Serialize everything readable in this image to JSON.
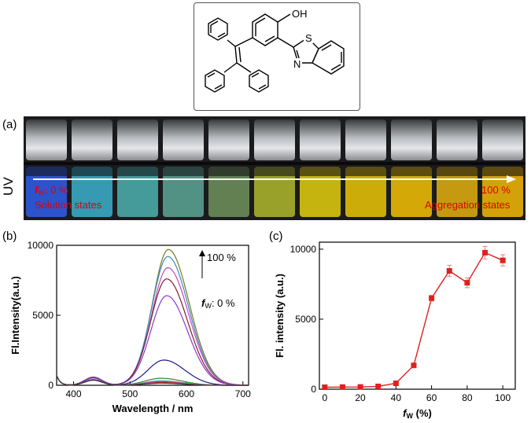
{
  "structure": {
    "oh_label": "OH",
    "s_label": "S",
    "n_label": "N"
  },
  "panel_a": {
    "label": "(a)",
    "uv_label": "UV",
    "left_fw_value": ": 0 %",
    "left_fw_symbol": "f",
    "left_fw_sub": "W",
    "left_state": "Solution states",
    "right_fw_value": "100 %",
    "right_state": "Aggregation states",
    "vial_colors_uv": [
      "#2e5be0",
      "#3aa8c4",
      "#4aa8a8",
      "#58a090",
      "#6a8c58",
      "#a8b02e",
      "#d8c40e",
      "#e0bc08",
      "#e8b806",
      "#d8a810",
      "#e8b008"
    ]
  },
  "panel_b": {
    "label": "(b)",
    "top_annotation": "100 %",
    "bottom_annotation": ": 0 %"
  },
  "panel_c": {
    "label": "(c)"
  },
  "chart_data": [
    {
      "type": "line",
      "xlabel": "Wavelength / nm",
      "ylabel": "Fl.Intensity(a.u.)",
      "xlim": [
        370,
        710
      ],
      "ylim": [
        0,
        10000
      ],
      "xticks": [
        400,
        500,
        600,
        700
      ],
      "yticks": [
        0,
        5000,
        10000
      ],
      "grid": false,
      "series": [
        {
          "color": "#7a7a1e",
          "peak": 9700,
          "peak_x": 568
        },
        {
          "color": "#3a8ac8",
          "peak": 9200,
          "peak_x": 567
        },
        {
          "color": "#c04ac0",
          "peak": 8400,
          "peak_x": 567
        },
        {
          "color": "#7a1e2e",
          "peak": 7600,
          "peak_x": 565
        },
        {
          "color": "#8a3ac8",
          "peak": 6400,
          "peak_x": 565
        },
        {
          "color": "#1a1a8a",
          "peak": 1800,
          "peak_x": 560
        },
        {
          "color": "#2a8a2a",
          "peak": 500,
          "peak_x": 555
        },
        {
          "color": "#3aa8a8",
          "peak": 320,
          "peak_x": 555
        },
        {
          "color": "#c83aa8",
          "peak": 260,
          "peak_x": 555
        },
        {
          "color": "#c82a2a",
          "peak": 200,
          "peak_x": 555
        },
        {
          "color": "#3a3a3a",
          "peak": 150,
          "peak_x": 555
        }
      ]
    },
    {
      "type": "line",
      "xlabel_symbol": "f",
      "xlabel_sub": "W",
      "xlabel_rest": " (%)",
      "ylabel": "Fl. intensity (a.u.)",
      "xlim": [
        -3,
        107
      ],
      "ylim": [
        0,
        10500
      ],
      "xticks": [
        0,
        20,
        40,
        60,
        80,
        100
      ],
      "yticks": [
        0,
        5000,
        10000
      ],
      "grid": false,
      "color": "#e02020",
      "x": [
        0,
        10,
        20,
        30,
        40,
        50,
        60,
        70,
        80,
        90,
        100
      ],
      "y": [
        140,
        150,
        160,
        200,
        420,
        1700,
        6500,
        8450,
        7600,
        9750,
        9200
      ],
      "err": [
        0,
        0,
        0,
        0,
        0,
        0,
        200,
        400,
        350,
        450,
        400
      ]
    }
  ]
}
